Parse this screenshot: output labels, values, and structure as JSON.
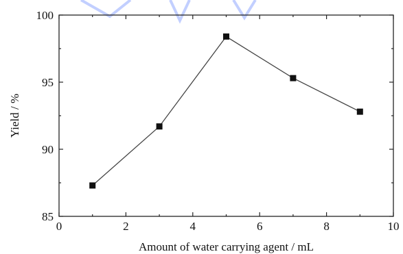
{
  "chart_data": {
    "type": "line",
    "title": "",
    "xlabel": "Amount of water carrying agent / mL",
    "ylabel": "Yield / %",
    "xlim": [
      0,
      10
    ],
    "ylim": [
      85,
      100
    ],
    "xticks": [
      0,
      2,
      4,
      6,
      8,
      10
    ],
    "yticks": [
      85,
      90,
      95,
      100
    ],
    "grid": false,
    "marker": "square",
    "series": [
      {
        "x": [
          1,
          3,
          5,
          7,
          9
        ],
        "y": [
          87.3,
          91.7,
          98.4,
          95.3,
          92.8
        ]
      }
    ]
  },
  "colors": {
    "line": "#444444",
    "marker": "#111111",
    "axis": "#222222"
  }
}
